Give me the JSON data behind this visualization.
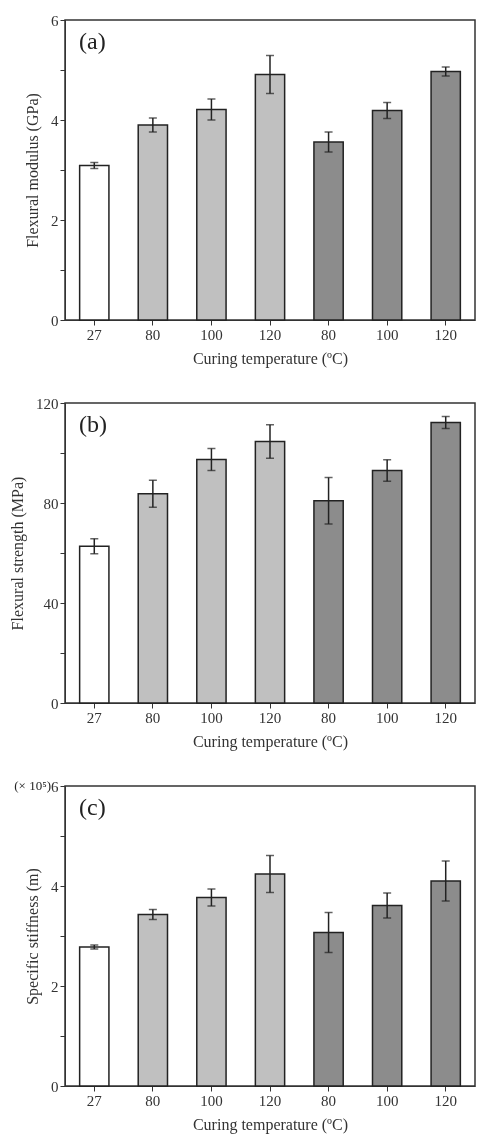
{
  "chart_data": [
    {
      "type": "bar",
      "xlabel": "Curing temperature (ºC)",
      "ylabel": "Flexural modulus (GPa)",
      "annotations": [
        "(a)"
      ],
      "categories": [
        "27",
        "80",
        "100",
        "120",
        "80",
        "100",
        "120"
      ],
      "values": [
        3.09,
        3.9,
        4.21,
        4.91,
        3.56,
        4.19,
        4.97
      ],
      "errors": [
        0.06,
        0.14,
        0.21,
        0.38,
        0.2,
        0.16,
        0.09
      ],
      "colors": [
        "#ffffff",
        "#c0c0c0",
        "#c0c0c0",
        "#c0c0c0",
        "#8c8c8c",
        "#8c8c8c",
        "#8c8c8c"
      ],
      "ylim": [
        0,
        6
      ],
      "yticks": [
        0,
        {
          "value": 1,
          "label": null
        },
        2,
        {
          "value": 3,
          "label": null
        },
        4,
        {
          "value": 5,
          "label": null
        },
        6
      ],
      "grid": false
    },
    {
      "type": "bar",
      "xlabel": "Curing temperature (ºC)",
      "ylabel": "Flexural strength (MPa)",
      "annotations": [
        "(b)"
      ],
      "categories": [
        "27",
        "80",
        "100",
        "120",
        "80",
        "100",
        "120"
      ],
      "values": [
        62.7,
        83.7,
        97.4,
        104.6,
        80.9,
        93,
        112.2
      ],
      "errors": [
        3,
        5.4,
        4.4,
        6.7,
        9.3,
        4.3,
        2.4
      ],
      "colors": [
        "#ffffff",
        "#c0c0c0",
        "#c0c0c0",
        "#c0c0c0",
        "#8c8c8c",
        "#8c8c8c",
        "#8c8c8c"
      ],
      "ylim": [
        0,
        120
      ],
      "yticks": [
        0,
        {
          "value": 20,
          "label": null
        },
        40,
        {
          "value": 60,
          "label": null
        },
        80,
        {
          "value": 100,
          "label": null
        },
        120
      ],
      "grid": false
    },
    {
      "type": "bar",
      "xlabel": "Curing temperature (ºC)",
      "ylabel": "Specific stiffness (m)",
      "annotations": [
        "(c)",
        "(× 10⁵)"
      ],
      "categories": [
        "27",
        "80",
        "100",
        "120",
        "80",
        "100",
        "120"
      ],
      "values": [
        2.78,
        3.43,
        3.77,
        4.24,
        3.07,
        3.61,
        4.1
      ],
      "errors": [
        0.04,
        0.1,
        0.17,
        0.37,
        0.4,
        0.25,
        0.4
      ],
      "colors": [
        "#ffffff",
        "#c0c0c0",
        "#c0c0c0",
        "#c0c0c0",
        "#8c8c8c",
        "#8c8c8c",
        "#8c8c8c"
      ],
      "ylim": [
        0,
        6
      ],
      "yticks": [
        0,
        {
          "value": 1,
          "label": null
        },
        2,
        {
          "value": 3,
          "label": null
        },
        4,
        {
          "value": 5,
          "label": null
        },
        6
      ],
      "grid": false
    }
  ]
}
